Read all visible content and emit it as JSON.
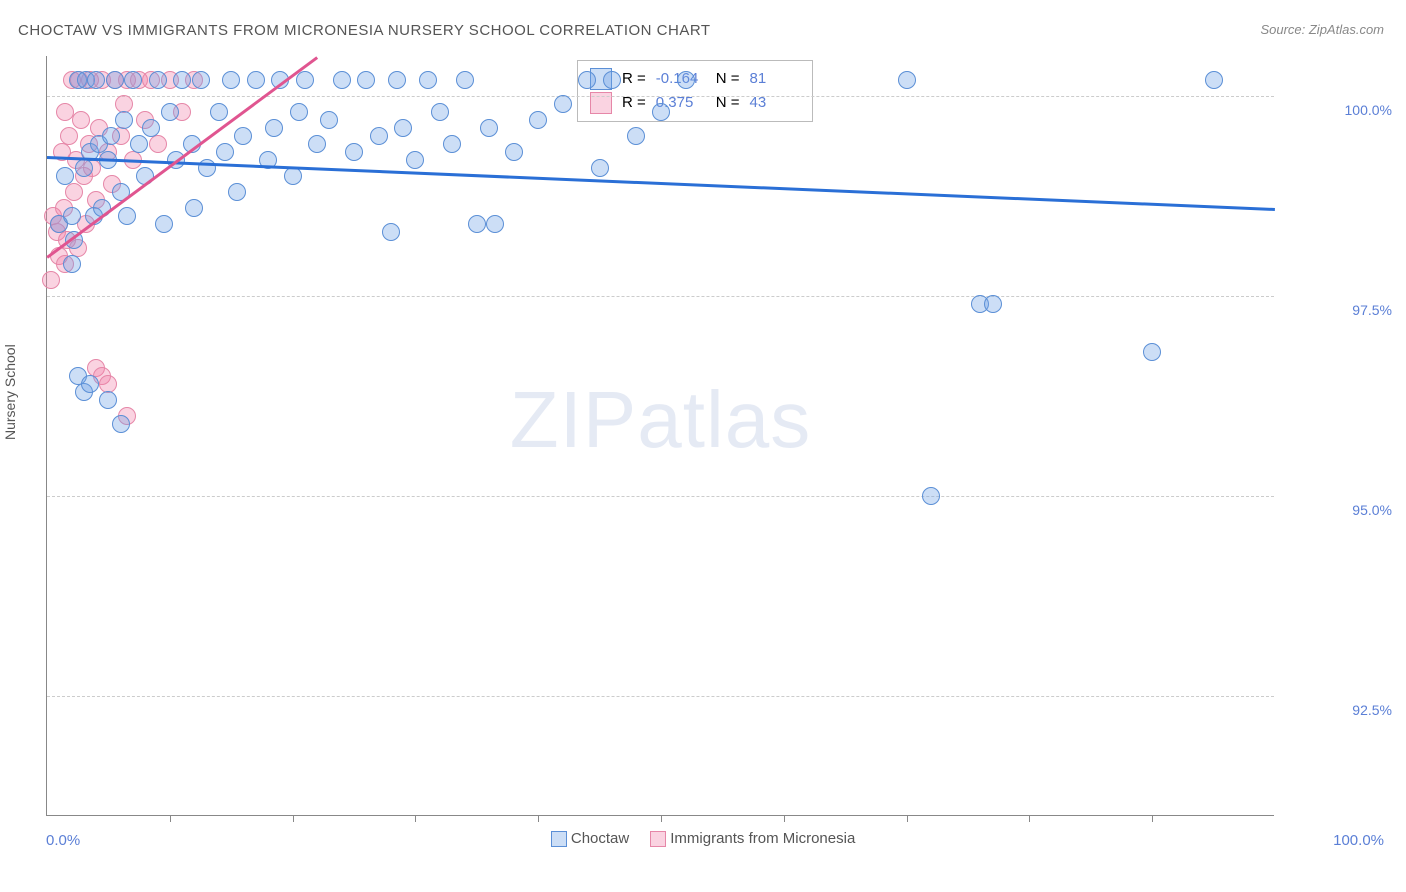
{
  "title": "CHOCTAW VS IMMIGRANTS FROM MICRONESIA NURSERY SCHOOL CORRELATION CHART",
  "source": "Source: ZipAtlas.com",
  "watermark_bold": "ZIP",
  "watermark_light": "atlas",
  "ylabel": "Nursery School",
  "xlabel_min": "0.0%",
  "xlabel_max": "100.0%",
  "chart": {
    "type": "scatter",
    "background_color": "#ffffff",
    "grid_color": "#cccccc",
    "axis_color": "#888888",
    "xlim": [
      0,
      100
    ],
    "ylim": [
      91,
      100.5
    ],
    "yticks": [
      92.5,
      95.0,
      97.5,
      100.0
    ],
    "ytick_labels": [
      "92.5%",
      "95.0%",
      "97.5%",
      "100.0%"
    ],
    "xtick_positions": [
      10,
      20,
      30,
      40,
      50,
      60,
      70,
      80,
      90
    ],
    "point_radius": 9,
    "series": [
      {
        "name": "Choctaw",
        "color_fill": "rgba(110,160,230,0.35)",
        "color_stroke": "#5b8fd6",
        "R": "-0.164",
        "N": "81",
        "trend": {
          "x1": 0,
          "y1": 99.25,
          "x2": 100,
          "y2": 98.6,
          "color": "#2a6fd6",
          "width": 2.5
        },
        "points": [
          [
            1,
            98.4
          ],
          [
            1.5,
            99.0
          ],
          [
            2,
            98.5
          ],
          [
            2.2,
            98.2
          ],
          [
            2.5,
            100.2
          ],
          [
            3,
            99.1
          ],
          [
            3.2,
            100.2
          ],
          [
            3.5,
            99.3
          ],
          [
            3.8,
            98.5
          ],
          [
            4,
            100.2
          ],
          [
            4.2,
            99.4
          ],
          [
            4.5,
            98.6
          ],
          [
            5,
            99.2
          ],
          [
            5.2,
            99.5
          ],
          [
            5.5,
            100.2
          ],
          [
            6,
            98.8
          ],
          [
            6.3,
            99.7
          ],
          [
            6.5,
            98.5
          ],
          [
            7,
            100.2
          ],
          [
            7.5,
            99.4
          ],
          [
            8,
            99.0
          ],
          [
            8.5,
            99.6
          ],
          [
            9,
            100.2
          ],
          [
            9.5,
            98.4
          ],
          [
            10,
            99.8
          ],
          [
            10.5,
            99.2
          ],
          [
            11,
            100.2
          ],
          [
            11.8,
            99.4
          ],
          [
            12,
            98.6
          ],
          [
            12.5,
            100.2
          ],
          [
            13,
            99.1
          ],
          [
            14,
            99.8
          ],
          [
            14.5,
            99.3
          ],
          [
            15,
            100.2
          ],
          [
            15.5,
            98.8
          ],
          [
            16,
            99.5
          ],
          [
            17,
            100.2
          ],
          [
            18,
            99.2
          ],
          [
            18.5,
            99.6
          ],
          [
            19,
            100.2
          ],
          [
            20,
            99.0
          ],
          [
            20.5,
            99.8
          ],
          [
            21,
            100.2
          ],
          [
            22,
            99.4
          ],
          [
            23,
            99.7
          ],
          [
            24,
            100.2
          ],
          [
            25,
            99.3
          ],
          [
            26,
            100.2
          ],
          [
            27,
            99.5
          ],
          [
            28,
            98.3
          ],
          [
            28.5,
            100.2
          ],
          [
            29,
            99.6
          ],
          [
            30,
            99.2
          ],
          [
            31,
            100.2
          ],
          [
            32,
            99.8
          ],
          [
            33,
            99.4
          ],
          [
            34,
            100.2
          ],
          [
            35,
            98.4
          ],
          [
            36,
            99.6
          ],
          [
            36.5,
            98.4
          ],
          [
            38,
            99.3
          ],
          [
            40,
            99.7
          ],
          [
            42,
            99.9
          ],
          [
            44,
            100.2
          ],
          [
            45,
            99.1
          ],
          [
            46,
            100.2
          ],
          [
            48,
            99.5
          ],
          [
            50,
            99.8
          ],
          [
            52,
            100.2
          ],
          [
            70,
            100.2
          ],
          [
            76,
            97.4
          ],
          [
            77,
            97.4
          ],
          [
            72,
            95.0
          ],
          [
            90,
            96.8
          ],
          [
            95,
            100.2
          ],
          [
            2.5,
            96.5
          ],
          [
            3,
            96.3
          ],
          [
            3.5,
            96.4
          ],
          [
            5,
            96.2
          ],
          [
            6,
            95.9
          ],
          [
            2,
            97.9
          ]
        ]
      },
      {
        "name": "Immigrants from Micronesia",
        "color_fill": "rgba(240,130,170,0.35)",
        "color_stroke": "#e687a8",
        "R": "0.375",
        "N": "43",
        "trend": {
          "x1": 0,
          "y1": 98.0,
          "x2": 22,
          "y2": 100.5,
          "color": "#e05590",
          "width": 2.5
        },
        "points": [
          [
            0.5,
            98.5
          ],
          [
            0.8,
            98.3
          ],
          [
            1,
            98.4
          ],
          [
            1.2,
            99.3
          ],
          [
            1.4,
            98.6
          ],
          [
            1.5,
            99.8
          ],
          [
            1.6,
            98.2
          ],
          [
            1.8,
            99.5
          ],
          [
            2,
            100.2
          ],
          [
            2.2,
            98.8
          ],
          [
            2.4,
            99.2
          ],
          [
            2.5,
            98.1
          ],
          [
            2.6,
            100.2
          ],
          [
            2.8,
            99.7
          ],
          [
            3,
            99.0
          ],
          [
            3.2,
            98.4
          ],
          [
            3.4,
            99.4
          ],
          [
            3.5,
            100.2
          ],
          [
            3.7,
            99.1
          ],
          [
            4,
            98.7
          ],
          [
            4.2,
            99.6
          ],
          [
            4.5,
            100.2
          ],
          [
            5,
            99.3
          ],
          [
            5.3,
            98.9
          ],
          [
            5.5,
            100.2
          ],
          [
            6,
            99.5
          ],
          [
            6.3,
            99.9
          ],
          [
            6.5,
            100.2
          ],
          [
            7,
            99.2
          ],
          [
            7.5,
            100.2
          ],
          [
            8,
            99.7
          ],
          [
            8.5,
            100.2
          ],
          [
            9,
            99.4
          ],
          [
            10,
            100.2
          ],
          [
            11,
            99.8
          ],
          [
            12,
            100.2
          ],
          [
            0.3,
            97.7
          ],
          [
            4,
            96.6
          ],
          [
            4.5,
            96.5
          ],
          [
            5,
            96.4
          ],
          [
            6.5,
            96.0
          ],
          [
            1,
            98.0
          ],
          [
            1.5,
            97.9
          ]
        ]
      }
    ]
  },
  "legend_labels": {
    "R": "R =",
    "N": "N ="
  }
}
